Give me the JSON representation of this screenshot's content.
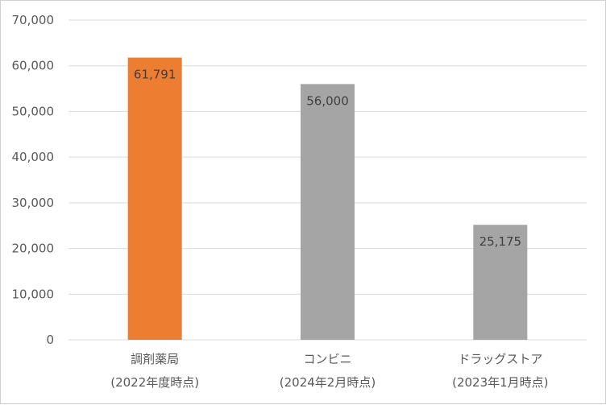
{
  "chart_data": {
    "type": "bar",
    "categories": [
      {
        "line1": "調剤薬局",
        "line2": "(2022年度時点)"
      },
      {
        "line1": "コンビニ",
        "line2": "(2024年2月時点)"
      },
      {
        "line1": "ドラッグストア",
        "line2": "(2023年1月時点)"
      }
    ],
    "values": [
      61791,
      56000,
      25175
    ],
    "data_labels": [
      "61,791",
      "56,000",
      "25,175"
    ],
    "colors": [
      "#ED7D31",
      "#A5A5A5",
      "#A5A5A5"
    ],
    "ylim": [
      0,
      70000
    ],
    "yticks": [
      0,
      10000,
      20000,
      30000,
      40000,
      50000,
      60000,
      70000
    ],
    "ytick_labels": [
      "0",
      "10,000",
      "20,000",
      "30,000",
      "40,000",
      "50,000",
      "60,000",
      "70,000"
    ],
    "grid": true,
    "gridline_color": "#d9d9d9",
    "legend": "none"
  }
}
